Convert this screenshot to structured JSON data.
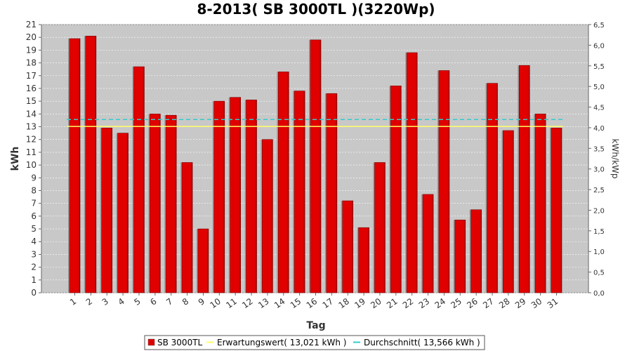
{
  "colors": {
    "bar": "#e00000",
    "bar_dark": "#a00000",
    "bar_shadow": "#999999",
    "plot_bg": "#c8c8c8",
    "expectation": "#ffff66",
    "average": "#33cccc"
  },
  "chart_data": {
    "type": "bar",
    "title": "8-2013( SB 3000TL )(3220Wp)",
    "xlabel": "Tag",
    "ylabel": "kWh",
    "ylabel_right": "kWh/kWp",
    "ylim": [
      0,
      21
    ],
    "ylim_right": [
      0,
      6.5
    ],
    "y_ticks": [
      "0",
      "1",
      "2",
      "3",
      "4",
      "5",
      "6",
      "7",
      "8",
      "9",
      "10",
      "11",
      "12",
      "13",
      "14",
      "15",
      "16",
      "17",
      "18",
      "19",
      "20",
      "21"
    ],
    "y_ticks_right": [
      "0,0",
      "0,5",
      "1,0",
      "1,5",
      "2,0",
      "2,5",
      "3,0",
      "3,5",
      "4,0",
      "4,5",
      "5,0",
      "5,5",
      "6,0",
      "6,5"
    ],
    "categories": [
      "1",
      "2",
      "3",
      "4",
      "5",
      "6",
      "7",
      "8",
      "9",
      "10",
      "11",
      "12",
      "13",
      "14",
      "15",
      "16",
      "17",
      "18",
      "19",
      "20",
      "21",
      "22",
      "23",
      "24",
      "25",
      "26",
      "27",
      "28",
      "29",
      "30",
      "31"
    ],
    "series": [
      {
        "name": "SB 3000TL",
        "values": [
          19.9,
          20.1,
          12.9,
          12.5,
          17.7,
          14.0,
          13.9,
          10.2,
          5.0,
          15.0,
          15.3,
          15.1,
          12.0,
          17.3,
          15.8,
          19.8,
          15.6,
          7.2,
          5.1,
          10.2,
          16.2,
          18.8,
          7.7,
          17.4,
          5.7,
          6.5,
          16.4,
          12.7,
          17.8,
          14.0,
          12.9
        ]
      }
    ],
    "reference_lines": [
      {
        "name": "Erwartungswert( 13,021 kWh )",
        "value": 13.021
      },
      {
        "name": "Durchschnitt( 13,566 kWh )",
        "value": 13.566
      }
    ],
    "grid": true,
    "legend_position": "bottom"
  }
}
